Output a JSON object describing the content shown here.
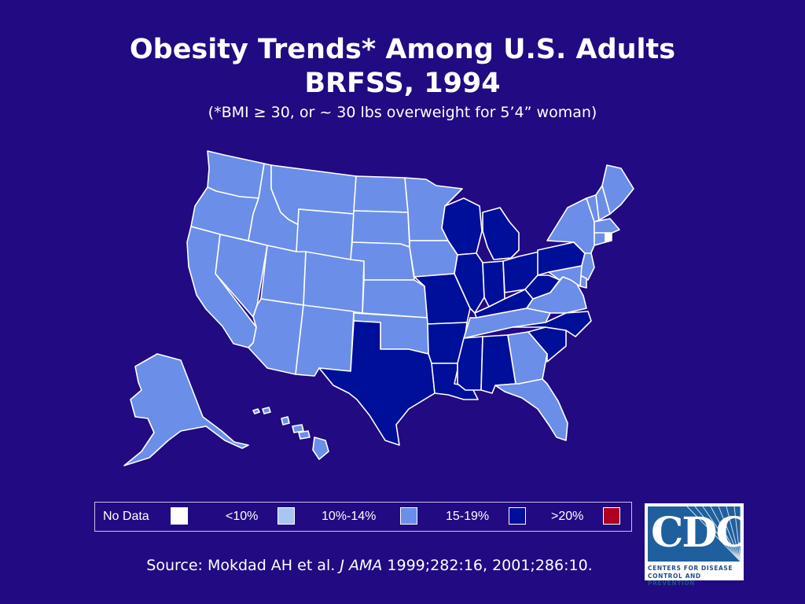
{
  "title_line1": "Obesity Trends* Among U.S. Adults",
  "title_line2": "BRFSS, 1994",
  "subtitle": "(*BMI ≥ 30, or ~ 30 lbs overweight for 5’4” woman)",
  "legend": [
    {
      "label": "No Data",
      "color": "#ffffff"
    },
    {
      "label": "<10%",
      "color": "#a9c5f2"
    },
    {
      "label": "10%-14%",
      "color": "#6b8ee8"
    },
    {
      "label": "15-19%",
      "color": "#000f9a"
    },
    {
      "label": ">20%",
      "color": "#b00020"
    }
  ],
  "source_prefix": "Source: Mokdad AH et al.",
  "source_journal": "J AMA",
  "source_suffix": " 1999;282:16, 2001;286:10.",
  "logo": {
    "letters": "CDC",
    "line1": "CENTERS FOR DISEASE",
    "line2": "CONTROL AND PREVENTION"
  },
  "colors": {
    "background": "#220a82",
    "state_border": "#ffffff",
    "low": "#a9c5f2",
    "mid": "#6b8ee8",
    "high": "#000f9a",
    "nodata": "#ffffff"
  },
  "states": {
    "WA": "mid",
    "OR": "mid",
    "CA": "mid",
    "NV": "mid",
    "ID": "mid",
    "MT": "mid",
    "WY": "mid",
    "UT": "mid",
    "AZ": "mid",
    "CO": "mid",
    "NM": "mid",
    "ND": "mid",
    "SD": "mid",
    "NE": "mid",
    "KS": "mid",
    "OK": "mid",
    "TX": "high",
    "MN": "mid",
    "IA": "mid",
    "MO": "high",
    "AR": "high",
    "LA": "high",
    "WI": "high",
    "IL": "high",
    "MI": "high",
    "IN": "high",
    "OH": "high",
    "KY": "high",
    "TN": "mid",
    "MS": "high",
    "AL": "high",
    "GA": "mid",
    "FL": "mid",
    "SC": "high",
    "NC": "high",
    "VA": "mid",
    "WV": "high",
    "PA": "high",
    "NY": "mid",
    "VT": "mid",
    "NH": "mid",
    "ME": "mid",
    "MA": "mid",
    "RI": "nodata",
    "CT": "mid",
    "NJ": "mid",
    "DE": "mid",
    "MD": "mid",
    "AK": "mid",
    "HI": "mid"
  }
}
